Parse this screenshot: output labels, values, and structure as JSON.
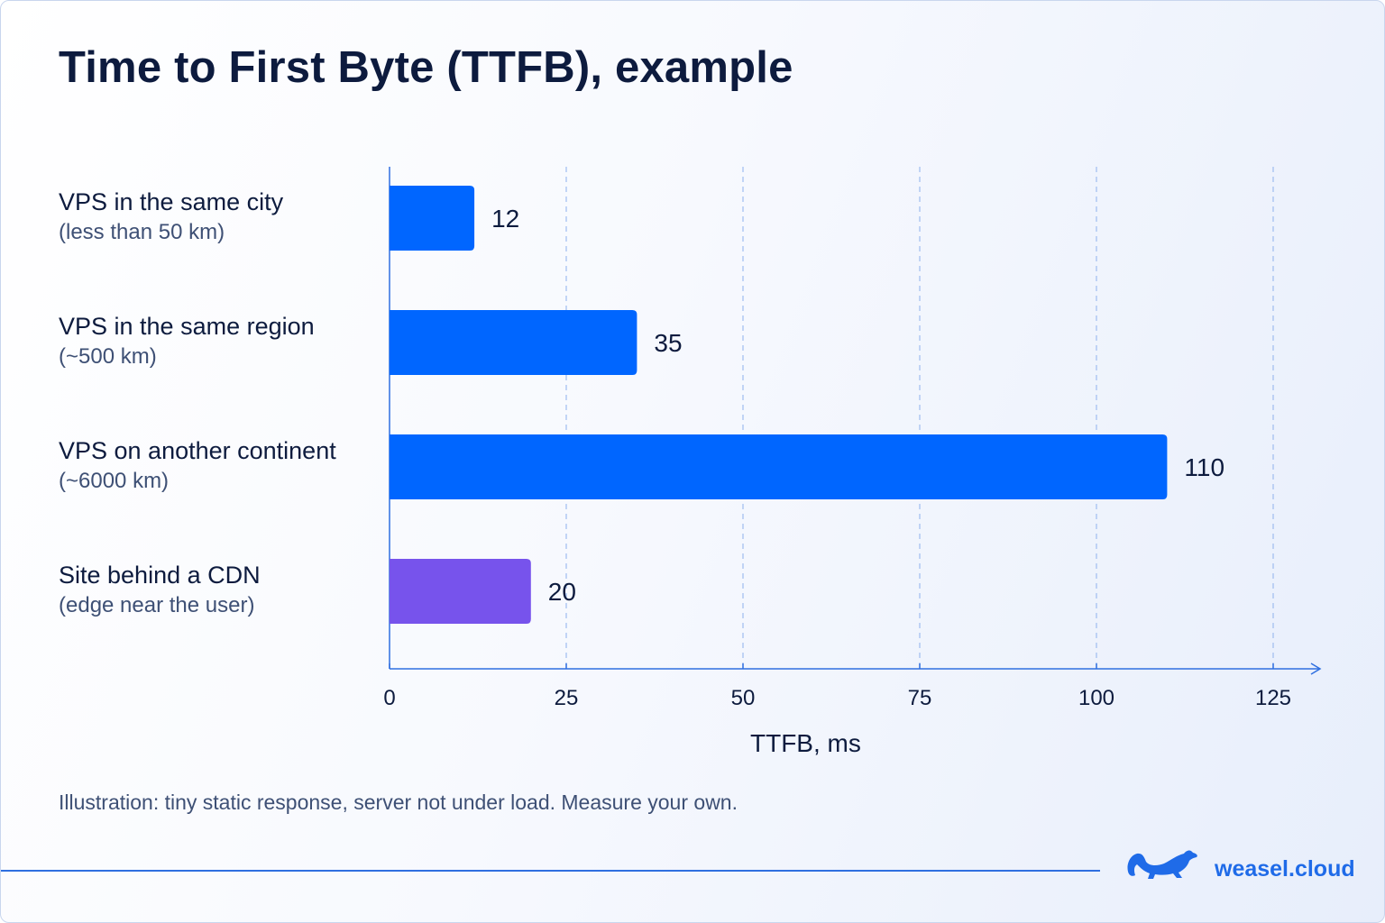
{
  "title": "Time to First Byte (TTFB), example",
  "note": "Illustration: tiny static response, server not under load. Measure your own.",
  "brand": {
    "name": "weasel.cloud",
    "logo_icon": "weasel-icon"
  },
  "colors": {
    "primary_bar": "#0066ff",
    "cdn_bar": "#7753ec",
    "axis": "#2f6fe0",
    "grid": "#9ebcf0"
  },
  "chart_data": {
    "type": "bar",
    "orientation": "horizontal",
    "title": "Time to First Byte (TTFB), example",
    "xlabel": "TTFB, ms",
    "ylabel": "",
    "xlim": [
      0,
      135
    ],
    "xticks": [
      0,
      25,
      50,
      75,
      100,
      125
    ],
    "grid": "vertical dashed",
    "categories": [
      {
        "label": "VPS in the same city",
        "sublabel": "(less than 50 km)",
        "value": 12,
        "color": "#0066ff"
      },
      {
        "label": "VPS in the same region",
        "sublabel": "(~500 km)",
        "value": 35,
        "color": "#0066ff"
      },
      {
        "label": "VPS on another continent",
        "sublabel": "(~6000 km)",
        "value": 110,
        "color": "#0066ff"
      },
      {
        "label": "Site behind a CDN",
        "sublabel": "(edge near the user)",
        "value": 20,
        "color": "#7753ec"
      }
    ]
  }
}
